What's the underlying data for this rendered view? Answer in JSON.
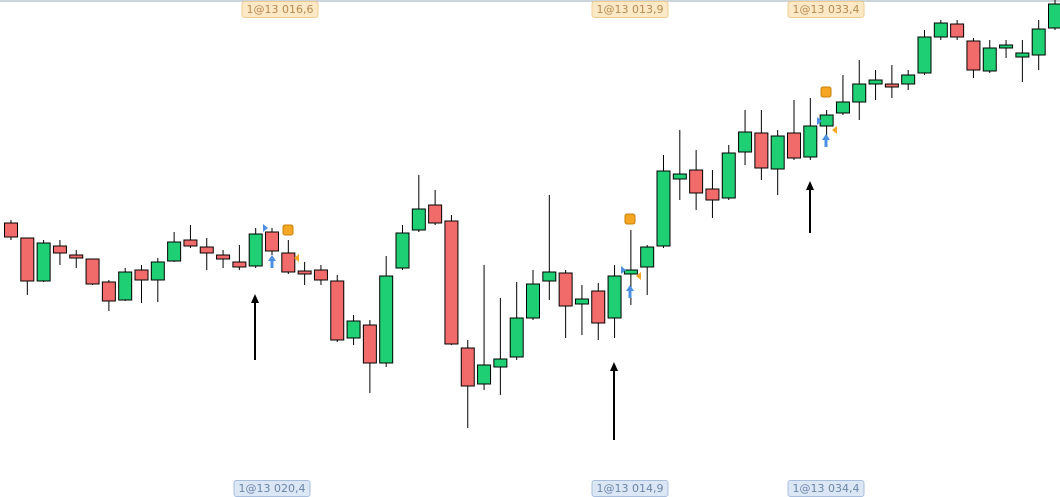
{
  "chart_data": {
    "type": "candlestick",
    "top_labels": [
      "1@13 016,6",
      "1@13 013,9",
      "1@13 033,4"
    ],
    "bottom_labels": [
      "1@13 020,4",
      "1@13 014,9",
      "1@13 034,4"
    ],
    "up_color": "#1ecf73",
    "down_color": "#f26b6b",
    "ylim": [
      0,
      497
    ],
    "open": [
      274,
      259,
      216,
      251,
      242,
      238,
      215,
      197,
      227,
      217,
      236,
      257,
      250,
      242,
      235,
      231,
      265,
      244,
      226,
      227,
      216,
      159,
      172,
      134,
      229,
      267,
      292,
      276,
      149,
      113,
      130,
      140,
      179,
      216,
      224,
      193,
      206,
      179,
      223,
      230,
      251,
      318,
      327,
      308,
      299,
      345,
      364,
      328,
      364,
      340,
      371,
      384,
      395,
      413,
      413,
      413,
      424,
      460,
      473,
      456,
      426,
      449,
      440,
      442,
      469
    ],
    "high": [
      277,
      259,
      257,
      257,
      247,
      238,
      217,
      229,
      232,
      239,
      265,
      272,
      259,
      247,
      252,
      269,
      269,
      257,
      235,
      232,
      222,
      182,
      177,
      241,
      272,
      322,
      307,
      282,
      157,
      232,
      199,
      215,
      227,
      302,
      227,
      212,
      214,
      232,
      267,
      252,
      342,
      367,
      347,
      327,
      352,
      387,
      387,
      367,
      397,
      399,
      387,
      422,
      437,
      427,
      432,
      427,
      467,
      477,
      477,
      459,
      457,
      457,
      457,
      477,
      497
    ],
    "low": [
      257,
      202,
      215,
      232,
      229,
      212,
      186,
      196,
      194,
      195,
      235,
      249,
      227,
      229,
      227,
      229,
      242,
      223,
      212,
      212,
      155,
      152,
      104,
      130,
      227,
      265,
      272,
      152,
      69,
      107,
      102,
      137,
      177,
      197,
      159,
      162,
      157,
      159,
      192,
      202,
      249,
      297,
      287,
      279,
      297,
      332,
      317,
      302,
      337,
      337,
      357,
      382,
      377,
      397,
      399,
      407,
      422,
      457,
      457,
      419,
      424,
      439,
      415,
      427,
      467
    ],
    "close": [
      260,
      216,
      254,
      244,
      239,
      213,
      196,
      225,
      217,
      235,
      255,
      251,
      244,
      238,
      230,
      263,
      246,
      225,
      223,
      217,
      157,
      176,
      134,
      221,
      264,
      288,
      274,
      153,
      111,
      132,
      138,
      179,
      213,
      225,
      191,
      198,
      174,
      221,
      227,
      250,
      326,
      323,
      304,
      297,
      344,
      365,
      329,
      361,
      339,
      371,
      382,
      395,
      413,
      417,
      410,
      422,
      460,
      474,
      460,
      427,
      449,
      452,
      444,
      468,
      493
    ]
  }
}
